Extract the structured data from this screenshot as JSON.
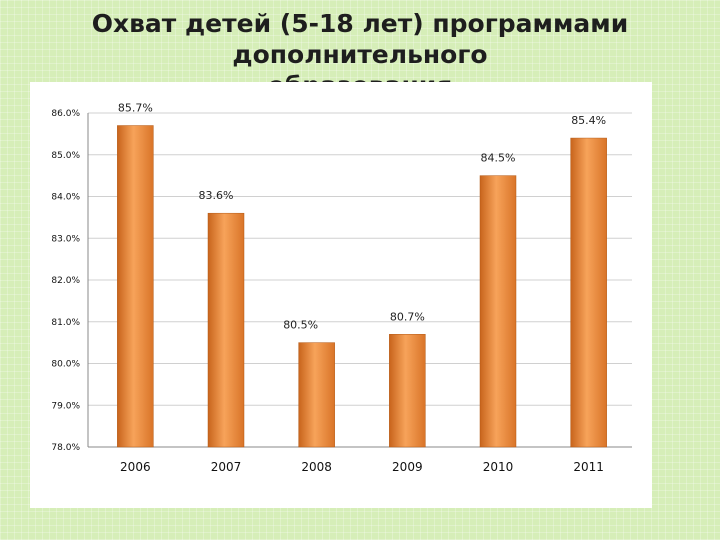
{
  "slide": {
    "title_line1": "Охват детей (5-18 лет) программами дополнительного",
    "title_line2": "образования"
  },
  "chart_data": {
    "type": "bar",
    "categories": [
      "2006",
      "2007",
      "2008",
      "2009",
      "2010",
      "2011"
    ],
    "values": [
      85.7,
      83.6,
      80.5,
      80.7,
      84.5,
      85.4
    ],
    "data_labels": [
      "85.7%",
      "83.6%",
      "80.5%",
      "80.7%",
      "84.5%",
      "85.4%"
    ],
    "ylim": [
      78,
      86
    ],
    "yticks": [
      "78.0%",
      "79.0%",
      "80.0%",
      "81.0%",
      "82.0%",
      "83.0%",
      "84.0%",
      "85.0%",
      "86.0%"
    ],
    "grid": true,
    "legend": "none",
    "bar_color": "#e8893a"
  }
}
